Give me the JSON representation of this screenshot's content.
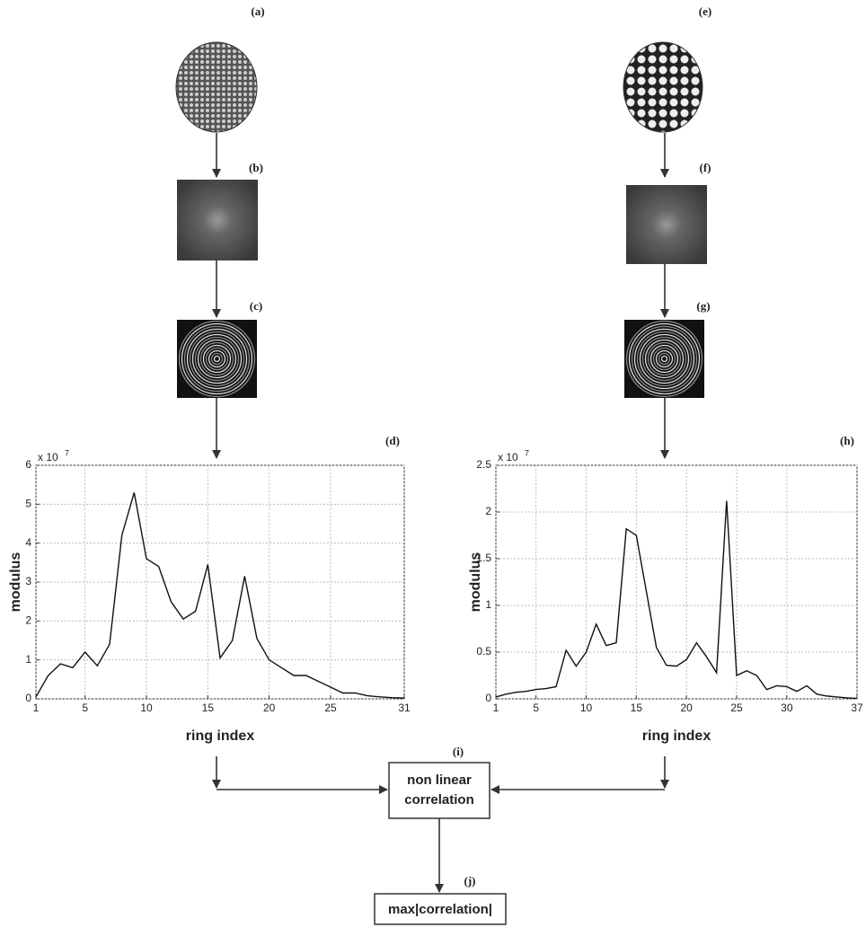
{
  "panel_labels": [
    "(a)",
    "(b)",
    "(c)",
    "(d)",
    "(e)",
    "(f)",
    "(g)",
    "(h)",
    "(i)",
    "(j)"
  ],
  "nodes": [
    {
      "lines": [
        "non linear",
        "correlation"
      ]
    },
    {
      "lines": [
        "max|correlation|"
      ]
    }
  ],
  "chart_data": [
    {
      "type": "line",
      "xlabel": "ring index",
      "ylabel": "modulus",
      "y_multiplier": {
        "base": "x 10",
        "exponent": "7"
      },
      "x": [
        1,
        2,
        3,
        4,
        5,
        6,
        7,
        8,
        9,
        10,
        11,
        12,
        13,
        14,
        15,
        16,
        17,
        18,
        19,
        20,
        21,
        22,
        23,
        24,
        25,
        26,
        27,
        28,
        29,
        30,
        31
      ],
      "series": [
        {
          "color": "#111111",
          "values": [
            0.05,
            0.6,
            0.9,
            0.8,
            1.2,
            0.85,
            1.4,
            4.2,
            5.3,
            3.6,
            3.4,
            2.5,
            2.05,
            2.25,
            3.45,
            1.05,
            1.5,
            3.15,
            1.55,
            1.0,
            0.8,
            0.6,
            0.6,
            0.45,
            0.3,
            0.15,
            0.15,
            0.08,
            0.05,
            0.03,
            0.02
          ]
        }
      ],
      "xlim": [
        1,
        31
      ],
      "xticks": [
        1,
        5,
        10,
        15,
        20,
        25,
        31
      ],
      "ylim": [
        0,
        6
      ],
      "yticks": [
        0,
        1,
        2,
        3,
        4,
        5,
        6
      ],
      "grid": true
    },
    {
      "type": "line",
      "xlabel": "ring index",
      "ylabel": "modulus",
      "y_multiplier": {
        "base": "x 10",
        "exponent": "7"
      },
      "x": [
        1,
        2,
        3,
        4,
        5,
        6,
        7,
        8,
        9,
        10,
        11,
        12,
        13,
        14,
        15,
        16,
        17,
        18,
        19,
        20,
        21,
        22,
        23,
        24,
        25,
        26,
        27,
        28,
        29,
        30,
        31,
        32,
        33,
        34,
        35,
        36,
        37
      ],
      "series": [
        {
          "color": "#111111",
          "values": [
            0.02,
            0.05,
            0.07,
            0.08,
            0.1,
            0.11,
            0.13,
            0.52,
            0.35,
            0.5,
            0.8,
            0.57,
            0.6,
            1.82,
            1.75,
            1.15,
            0.55,
            0.36,
            0.35,
            0.42,
            0.6,
            0.45,
            0.28,
            2.12,
            0.25,
            0.3,
            0.25,
            0.1,
            0.14,
            0.13,
            0.08,
            0.14,
            0.05,
            0.03,
            0.02,
            0.01,
            0.005
          ]
        }
      ],
      "xlim": [
        1,
        37
      ],
      "xticks": [
        1,
        5,
        10,
        15,
        20,
        25,
        30,
        37
      ],
      "ylim": [
        0,
        2.5
      ],
      "yticks": [
        0,
        0.5,
        1,
        1.5,
        2,
        2.5
      ],
      "grid": true
    }
  ]
}
